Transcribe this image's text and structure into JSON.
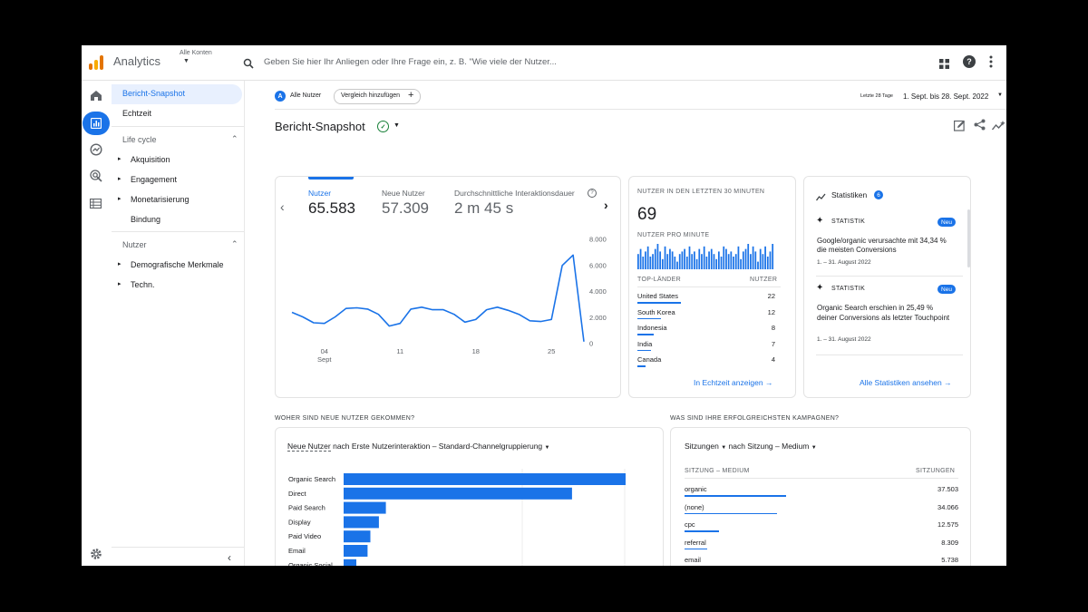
{
  "header": {
    "app_name": "Analytics",
    "account_label": "Alle Konten",
    "search_placeholder": "Geben Sie hier Ihr Anliegen oder Ihre Frage ein, z. B. \"Wie viele der Nutzer..."
  },
  "nav": {
    "snapshot": "Bericht-Snapshot",
    "realtime": "Echtzeit",
    "lifecycle_title": "Life cycle",
    "lifecycle_items": [
      "Akquisition",
      "Engagement",
      "Monetarisierung",
      "Bindung"
    ],
    "users_title": "Nutzer",
    "users_items": [
      "Demografische Merkmale",
      "Techn."
    ]
  },
  "filters": {
    "segment_badge": "A",
    "segment_label": "Alle Nutzer",
    "compare_button": "Vergleich hinzufügen",
    "date_prefix": "Letzte 28 Tage",
    "date_range": "1. Sept. bis 28. Sept. 2022"
  },
  "page_title": "Bericht-Snapshot",
  "metrics": [
    {
      "label": "Nutzer",
      "value": "65.583"
    },
    {
      "label": "Neue Nutzer",
      "value": "57.309"
    },
    {
      "label": "Durchschnittliche Interaktionsdauer",
      "value": "2 m 45 s"
    }
  ],
  "chart_data": {
    "type": "line",
    "series": [
      {
        "values": [
          2400,
          2050,
          1600,
          1550,
          2050,
          2700,
          2750,
          2650,
          2250,
          1350,
          1550,
          2650,
          2800,
          2600,
          2600,
          2250,
          1650,
          1850,
          2600,
          2800,
          2550,
          2250,
          1750,
          1700,
          1850,
          6000,
          6800,
          150
        ]
      }
    ],
    "x": [
      1,
      2,
      3,
      4,
      5,
      6,
      7,
      8,
      9,
      10,
      11,
      12,
      13,
      14,
      15,
      16,
      17,
      18,
      19,
      20,
      21,
      22,
      23,
      24,
      25,
      26,
      27,
      28
    ],
    "x_ticks": [
      {
        "x": 4,
        "label": "04",
        "sub": "Sept"
      },
      {
        "x": 11,
        "label": "11",
        "sub": ""
      },
      {
        "x": 18,
        "label": "18",
        "sub": ""
      },
      {
        "x": 25,
        "label": "25",
        "sub": ""
      }
    ],
    "y_ticks": [
      "8.000",
      "6.000",
      "4.000",
      "2.000",
      "0"
    ],
    "ylim": [
      0,
      8000
    ],
    "color": "#1a73e8",
    "grid": false
  },
  "realtime": {
    "title": "NUTZER IN DEN LETZTEN 30 MINUTEN",
    "value": "69",
    "per_minute_title": "NUTZER PRO MINUTE",
    "per_minute": [
      6,
      8,
      5,
      7,
      9,
      5,
      6,
      8,
      10,
      7,
      4,
      9,
      6,
      8,
      7,
      5,
      3,
      6,
      7,
      8,
      5,
      9,
      6,
      7,
      4,
      8,
      6,
      9,
      5,
      7,
      8,
      6,
      4,
      7,
      5,
      9,
      8,
      6,
      7,
      5,
      6,
      9,
      4,
      7,
      8,
      10,
      6,
      9,
      7,
      3,
      8,
      6,
      9,
      5,
      7,
      10
    ],
    "countries_header": "TOP-LÄNDER",
    "users_header": "NUTZER",
    "countries": [
      {
        "name": "United States",
        "value": "22",
        "share": 22
      },
      {
        "name": "South Korea",
        "value": "12",
        "share": 12
      },
      {
        "name": "Indonesia",
        "value": "8",
        "share": 8
      },
      {
        "name": "India",
        "value": "7",
        "share": 7
      },
      {
        "name": "Canada",
        "value": "4",
        "share": 4
      }
    ],
    "link": "In Echtzeit anzeigen"
  },
  "insights": {
    "title": "Statistiken",
    "count": "6",
    "items": [
      {
        "tag": "STATISTIK",
        "badge": "Neu",
        "text": "Google/organic verursachte mit 34,34 % die meisten Conversions",
        "date": "1. – 31. August 2022"
      },
      {
        "tag": "STATISTIK",
        "badge": "Neu",
        "text": "Organic Search erschien in 25,49 % deiner Conversions als letzter Touchpoint",
        "date": "1. – 31. August 2022"
      }
    ],
    "link": "Alle Statistiken ansehen"
  },
  "acquisition": {
    "section_title": "WOHER SIND NEUE NUTZER GEKOMMEN?",
    "dropdown_metric": "Neue Nutzer",
    "dropdown_rest": "nach Erste Nutzerinteraktion – Standard-Channelgruppierung",
    "bars": [
      {
        "label": "Organic Search",
        "value": 100
      },
      {
        "label": "Direct",
        "value": 81
      },
      {
        "label": "Paid Search",
        "value": 15
      },
      {
        "label": "Display",
        "value": 12.5
      },
      {
        "label": "Paid Video",
        "value": 9.5
      },
      {
        "label": "Email",
        "value": 8.5
      },
      {
        "label": "Organic Social",
        "value": 4.5
      }
    ]
  },
  "campaigns": {
    "section_title": "WAS SIND IHRE ERFOLGREICHSTEN KAMPAGNEN?",
    "dropdown_metric": "Sitzungen",
    "dropdown_dimension": "nach Sitzung – Medium",
    "col_dim": "SITZUNG – MEDIUM",
    "col_metric": "SITZUNGEN",
    "rows": [
      {
        "name": "organic",
        "value": "37.503",
        "share": 37503
      },
      {
        "name": "(none)",
        "value": "34.066",
        "share": 34066
      },
      {
        "name": "cpc",
        "value": "12.575",
        "share": 12575
      },
      {
        "name": "referral",
        "value": "8.309",
        "share": 8309
      },
      {
        "name": "email",
        "value": "5.738",
        "share": 5738
      }
    ]
  },
  "colors": {
    "accent": "#1a73e8",
    "logo_orange": "#f9ab00",
    "logo_dark_orange": "#e37400"
  }
}
